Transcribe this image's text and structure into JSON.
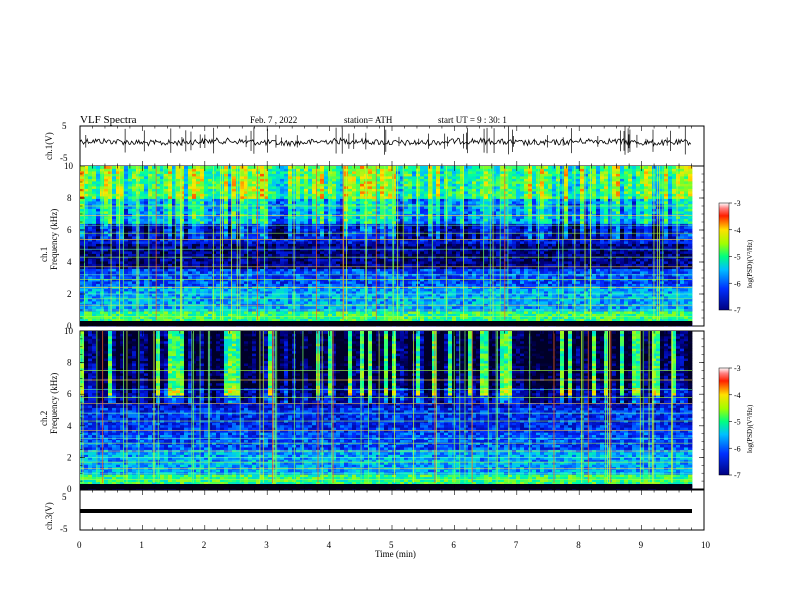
{
  "header": {
    "title": "VLF Spectra",
    "date": "Feb. 7 , 2022",
    "station": "station= ATH",
    "start": "start UT = 9 : 30: 1"
  },
  "chart_data": [
    {
      "type": "line",
      "name": "ch1-waveform",
      "ylabel": "ch.1(V)",
      "ylim": [
        -5,
        5
      ],
      "y_ticks": [
        "5",
        "-5"
      ],
      "xlim": [
        0,
        10
      ]
    },
    {
      "type": "heatmap",
      "name": "ch1-spectrogram",
      "ylabel": "ch.1",
      "ylabel2": "Frequency (kHz)",
      "ylim": [
        0,
        10
      ],
      "y_ticks": [
        "0",
        "2",
        "4",
        "6",
        "8",
        "10"
      ],
      "xlim": [
        0,
        9.8
      ],
      "colorbar": {
        "label": "log(PSD)(V²/Hz)",
        "range": [
          -7,
          -3
        ],
        "ticks": [
          "-3",
          "-4",
          "-5",
          "-6",
          "-7"
        ]
      }
    },
    {
      "type": "heatmap",
      "name": "ch2-spectrogram",
      "ylabel": "ch.2",
      "ylabel2": "Frequency (kHz)",
      "ylim": [
        0,
        10
      ],
      "y_ticks": [
        "0",
        "2",
        "4",
        "6",
        "8",
        "10"
      ],
      "xlim": [
        0,
        9.8
      ],
      "colorbar": {
        "label": "log(PSD)(V²/Hz)",
        "range": [
          -7,
          -3
        ],
        "ticks": [
          "-3",
          "-4",
          "-5",
          "-6",
          "-7"
        ]
      }
    },
    {
      "type": "line",
      "name": "ch3-waveform",
      "ylabel": "ch.3(V)",
      "ylim": [
        -5,
        5
      ],
      "y_ticks": [
        "5",
        "-5"
      ],
      "xlim": [
        0,
        10
      ],
      "xlabel": "Time (min)",
      "x_ticks": [
        "0",
        "1",
        "2",
        "3",
        "4",
        "5",
        "6",
        "7",
        "8",
        "9",
        "10"
      ]
    }
  ]
}
